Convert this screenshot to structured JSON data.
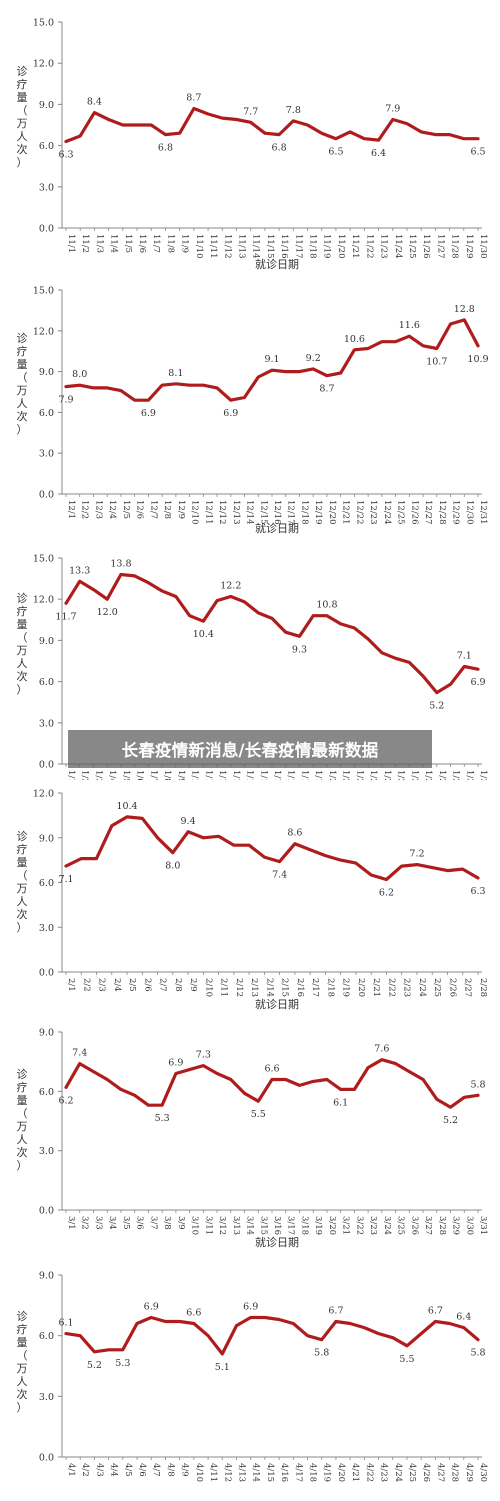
{
  "overlay": {
    "text": "长春疫情新消息/长春疫情最新数据"
  },
  "style": {
    "line_color": "#b01c1c",
    "axis_color": "#888888",
    "grid_color": "#cccccc"
  },
  "chart_data": [
    {
      "type": "line",
      "xlabel": "就诊日期",
      "ylabel": [
        "诊",
        "疗",
        "量",
        "（",
        "万",
        "人",
        "次",
        "）"
      ],
      "ylim": [
        0,
        15
      ],
      "yticks": [
        "0.0",
        "3.0",
        "6.0",
        "9.0",
        "12.0",
        "15.0"
      ],
      "x": [
        "11/1",
        "11/2",
        "11/3",
        "11/4",
        "11/5",
        "11/6",
        "11/7",
        "11/8",
        "11/9",
        "11/10",
        "11/11",
        "11/12",
        "11/13",
        "11/14",
        "11/15",
        "11/16",
        "11/17",
        "11/18",
        "11/19",
        "11/20",
        "11/21",
        "11/22",
        "11/23",
        "11/24",
        "11/25",
        "11/26",
        "11/27",
        "11/28",
        "11/29",
        "11/30"
      ],
      "values": [
        6.3,
        6.7,
        8.4,
        7.9,
        7.5,
        7.5,
        7.5,
        6.8,
        6.9,
        8.7,
        8.3,
        8.0,
        7.9,
        7.7,
        6.9,
        6.8,
        7.8,
        7.5,
        6.9,
        6.5,
        7.0,
        6.5,
        6.4,
        7.9,
        7.6,
        7.0,
        6.8,
        6.8,
        6.5,
        6.5
      ],
      "annotations": [
        {
          "i": 0,
          "label": "6.3",
          "pos": "below"
        },
        {
          "i": 2,
          "label": "8.4",
          "pos": "above"
        },
        {
          "i": 7,
          "label": "6.8",
          "pos": "below"
        },
        {
          "i": 9,
          "label": "8.7",
          "pos": "above"
        },
        {
          "i": 13,
          "label": "7.7",
          "pos": "above"
        },
        {
          "i": 15,
          "label": "6.8",
          "pos": "below"
        },
        {
          "i": 16,
          "label": "7.8",
          "pos": "above"
        },
        {
          "i": 19,
          "label": "6.5",
          "pos": "below"
        },
        {
          "i": 22,
          "label": "6.4",
          "pos": "below"
        },
        {
          "i": 23,
          "label": "7.9",
          "pos": "above"
        },
        {
          "i": 29,
          "label": "6.5",
          "pos": "below"
        }
      ]
    },
    {
      "type": "line",
      "xlabel": "就诊日期",
      "ylabel": [
        "诊",
        "疗",
        "量",
        "（",
        "万",
        "人",
        "次",
        "）"
      ],
      "ylim": [
        0,
        15
      ],
      "yticks": [
        "0.0",
        "3.0",
        "6.0",
        "9.0",
        "12.0",
        "15.0"
      ],
      "x": [
        "12/1",
        "12/2",
        "12/3",
        "12/4",
        "12/5",
        "12/6",
        "12/7",
        "12/8",
        "12/9",
        "12/10",
        "12/11",
        "12/12",
        "12/13",
        "12/14",
        "12/15",
        "12/16",
        "12/17",
        "12/18",
        "12/19",
        "12/20",
        "12/21",
        "12/22",
        "12/23",
        "12/24",
        "12/25",
        "12/26",
        "12/27",
        "12/28",
        "12/29",
        "12/30",
        "12/31"
      ],
      "values": [
        7.9,
        8.0,
        7.8,
        7.8,
        7.6,
        6.9,
        6.9,
        8.0,
        8.1,
        8.0,
        8.0,
        7.8,
        6.9,
        7.1,
        8.6,
        9.1,
        9.0,
        9.0,
        9.2,
        8.7,
        8.9,
        10.6,
        10.7,
        11.2,
        11.2,
        11.6,
        10.9,
        10.7,
        12.5,
        12.8,
        10.9
      ],
      "annotations": [
        {
          "i": 0,
          "label": "7.9",
          "pos": "below"
        },
        {
          "i": 1,
          "label": "8.0",
          "pos": "above"
        },
        {
          "i": 6,
          "label": "6.9",
          "pos": "below"
        },
        {
          "i": 8,
          "label": "8.1",
          "pos": "above"
        },
        {
          "i": 12,
          "label": "6.9",
          "pos": "below"
        },
        {
          "i": 15,
          "label": "9.1",
          "pos": "above"
        },
        {
          "i": 18,
          "label": "9.2",
          "pos": "above"
        },
        {
          "i": 19,
          "label": "8.7",
          "pos": "below"
        },
        {
          "i": 21,
          "label": "10.6",
          "pos": "above"
        },
        {
          "i": 25,
          "label": "11.6",
          "pos": "above"
        },
        {
          "i": 27,
          "label": "10.7",
          "pos": "below"
        },
        {
          "i": 29,
          "label": "12.8",
          "pos": "above"
        },
        {
          "i": 30,
          "label": "10.9",
          "pos": "below"
        }
      ]
    },
    {
      "type": "line",
      "xlabel": "就诊日期",
      "ylabel": [
        "诊",
        "疗",
        "量",
        "（",
        "万",
        "人",
        "次",
        "）"
      ],
      "ylim": [
        0,
        15
      ],
      "yticks": [
        "0.0",
        "3.0",
        "6.0",
        "9.0",
        "12.0",
        "15.0"
      ],
      "x": [
        "1/1",
        "1/2",
        "1/3",
        "1/4",
        "1/5",
        "1/6",
        "1/7",
        "1/8",
        "1/9",
        "1/10",
        "1/11",
        "1/12",
        "1/13",
        "1/14",
        "1/15",
        "1/16",
        "1/17",
        "1/18",
        "1/19",
        "1/20",
        "1/21",
        "1/22",
        "1/23",
        "1/24",
        "1/25",
        "1/26",
        "1/27",
        "1/28",
        "1/29",
        "1/30",
        "1/31"
      ],
      "values": [
        11.7,
        13.3,
        12.7,
        12.0,
        13.8,
        13.7,
        13.2,
        12.6,
        12.2,
        10.8,
        10.4,
        11.9,
        12.2,
        11.8,
        11.0,
        10.6,
        9.6,
        9.3,
        10.8,
        10.8,
        10.2,
        9.9,
        9.1,
        8.1,
        7.7,
        7.4,
        6.4,
        5.2,
        5.8,
        7.1,
        6.9
      ],
      "annotations": [
        {
          "i": 0,
          "label": "11.7",
          "pos": "below"
        },
        {
          "i": 1,
          "label": "13.3",
          "pos": "above"
        },
        {
          "i": 3,
          "label": "12.0",
          "pos": "below"
        },
        {
          "i": 4,
          "label": "13.8",
          "pos": "above"
        },
        {
          "i": 10,
          "label": "10.4",
          "pos": "below"
        },
        {
          "i": 12,
          "label": "12.2",
          "pos": "above"
        },
        {
          "i": 17,
          "label": "9.3",
          "pos": "below"
        },
        {
          "i": 19,
          "label": "10.8",
          "pos": "above"
        },
        {
          "i": 27,
          "label": "5.2",
          "pos": "below"
        },
        {
          "i": 29,
          "label": "7.1",
          "pos": "above"
        },
        {
          "i": 30,
          "label": "6.9",
          "pos": "below"
        }
      ]
    },
    {
      "type": "line",
      "xlabel": "就诊日期",
      "ylabel": [
        "诊",
        "疗",
        "量",
        "（",
        "万",
        "人",
        "次",
        "）"
      ],
      "ylim": [
        0,
        12
      ],
      "yticks": [
        "0.0",
        "3.0",
        "6.0",
        "9.0",
        "12.0"
      ],
      "x": [
        "2/1",
        "2/2",
        "2/3",
        "2/4",
        "2/5",
        "2/6",
        "2/7",
        "2/8",
        "2/9",
        "2/10",
        "2/11",
        "2/12",
        "2/13",
        "2/14",
        "2/15",
        "2/16",
        "2/17",
        "2/18",
        "2/19",
        "2/20",
        "2/21",
        "2/22",
        "2/23",
        "2/24",
        "2/25",
        "2/26",
        "2/27",
        "2/28"
      ],
      "values": [
        7.1,
        7.6,
        7.6,
        9.8,
        10.4,
        10.3,
        9.0,
        8.0,
        9.4,
        9.0,
        9.1,
        8.5,
        8.5,
        7.7,
        7.4,
        8.6,
        8.2,
        7.8,
        7.5,
        7.3,
        6.5,
        6.2,
        7.1,
        7.2,
        7.0,
        6.8,
        6.9,
        6.3
      ],
      "annotations": [
        {
          "i": 0,
          "label": "7.1",
          "pos": "below"
        },
        {
          "i": 4,
          "label": "10.4",
          "pos": "above"
        },
        {
          "i": 7,
          "label": "8.0",
          "pos": "below"
        },
        {
          "i": 8,
          "label": "9.4",
          "pos": "above"
        },
        {
          "i": 14,
          "label": "7.4",
          "pos": "below"
        },
        {
          "i": 15,
          "label": "8.6",
          "pos": "above"
        },
        {
          "i": 21,
          "label": "6.2",
          "pos": "below"
        },
        {
          "i": 23,
          "label": "7.2",
          "pos": "above"
        },
        {
          "i": 27,
          "label": "6.3",
          "pos": "below"
        }
      ]
    },
    {
      "type": "line",
      "xlabel": "就诊日期",
      "ylabel": [
        "诊",
        "疗",
        "量",
        "（",
        "万",
        "人",
        "次",
        "）"
      ],
      "ylim": [
        0,
        9
      ],
      "yticks": [
        "0.0",
        "3.0",
        "6.0",
        "9.0"
      ],
      "x": [
        "3/1",
        "3/2",
        "3/3",
        "3/4",
        "3/5",
        "3/6",
        "3/7",
        "3/8",
        "3/9",
        "3/10",
        "3/11",
        "3/12",
        "3/13",
        "3/14",
        "3/15",
        "3/16",
        "3/17",
        "3/18",
        "3/19",
        "3/20",
        "3/21",
        "3/22",
        "3/23",
        "3/24",
        "3/25",
        "3/26",
        "3/27",
        "3/28",
        "3/29",
        "3/30",
        "3/31"
      ],
      "values": [
        6.2,
        7.4,
        7.0,
        6.6,
        6.1,
        5.8,
        5.3,
        5.3,
        6.9,
        7.1,
        7.3,
        6.9,
        6.6,
        5.9,
        5.5,
        6.6,
        6.6,
        6.3,
        6.5,
        6.6,
        6.1,
        6.1,
        7.2,
        7.6,
        7.4,
        7.0,
        6.6,
        5.6,
        5.2,
        5.7,
        5.8
      ],
      "annotations": [
        {
          "i": 0,
          "label": "6.2",
          "pos": "below"
        },
        {
          "i": 1,
          "label": "7.4",
          "pos": "above"
        },
        {
          "i": 7,
          "label": "5.3",
          "pos": "below"
        },
        {
          "i": 8,
          "label": "6.9",
          "pos": "above"
        },
        {
          "i": 10,
          "label": "7.3",
          "pos": "above"
        },
        {
          "i": 14,
          "label": "5.5",
          "pos": "below"
        },
        {
          "i": 15,
          "label": "6.6",
          "pos": "above"
        },
        {
          "i": 20,
          "label": "6.1",
          "pos": "below"
        },
        {
          "i": 23,
          "label": "7.6",
          "pos": "above"
        },
        {
          "i": 28,
          "label": "5.2",
          "pos": "below"
        },
        {
          "i": 30,
          "label": "5.8",
          "pos": "above"
        }
      ]
    },
    {
      "type": "line",
      "xlabel": "",
      "ylabel": [
        "诊",
        "疗",
        "量",
        "（",
        "万",
        "人",
        "次",
        "）"
      ],
      "ylim": [
        0,
        9
      ],
      "yticks": [
        "0.0",
        "3.0",
        "6.0",
        "9.0"
      ],
      "x": [
        "4/1",
        "4/2",
        "4/3",
        "4/4",
        "4/5",
        "4/6",
        "4/7",
        "4/8",
        "4/9",
        "4/10",
        "4/11",
        "4/12",
        "4/13",
        "4/14",
        "4/15",
        "4/16",
        "4/17",
        "4/18",
        "4/19",
        "4/20",
        "4/21",
        "4/22",
        "4/23",
        "4/24",
        "4/25",
        "4/26",
        "4/27",
        "4/28",
        "4/29",
        "4/30"
      ],
      "values": [
        6.1,
        6.0,
        5.2,
        5.3,
        5.3,
        6.6,
        6.9,
        6.7,
        6.7,
        6.6,
        6.0,
        5.1,
        6.5,
        6.9,
        6.9,
        6.8,
        6.6,
        6.0,
        5.8,
        6.7,
        6.6,
        6.4,
        6.1,
        5.9,
        5.5,
        6.1,
        6.7,
        6.6,
        6.4,
        5.8
      ],
      "annotations": [
        {
          "i": 0,
          "label": "6.1",
          "pos": "above"
        },
        {
          "i": 2,
          "label": "5.2",
          "pos": "below"
        },
        {
          "i": 4,
          "label": "5.3",
          "pos": "below"
        },
        {
          "i": 6,
          "label": "6.9",
          "pos": "above"
        },
        {
          "i": 9,
          "label": "6.6",
          "pos": "above"
        },
        {
          "i": 11,
          "label": "5.1",
          "pos": "below"
        },
        {
          "i": 13,
          "label": "6.9",
          "pos": "above"
        },
        {
          "i": 18,
          "label": "5.8",
          "pos": "below"
        },
        {
          "i": 19,
          "label": "6.7",
          "pos": "above"
        },
        {
          "i": 24,
          "label": "5.5",
          "pos": "below"
        },
        {
          "i": 26,
          "label": "6.7",
          "pos": "above"
        },
        {
          "i": 28,
          "label": "6.4",
          "pos": "above"
        },
        {
          "i": 29,
          "label": "5.8",
          "pos": "below"
        }
      ]
    }
  ]
}
